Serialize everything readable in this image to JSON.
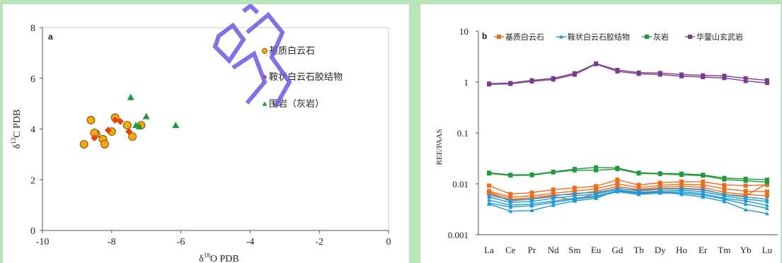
{
  "chart_data": [
    {
      "type": "scatter",
      "panel": "a",
      "xlabel": "δ18O PDB",
      "ylabel": "δ13C PDB",
      "xlim": [
        -10,
        0
      ],
      "ylim": [
        0,
        8
      ],
      "xticks": [
        "-10",
        "-8",
        "-6",
        "-4",
        "-2",
        "0"
      ],
      "yticks": [
        "0",
        "2",
        "4",
        "6",
        "8"
      ],
      "legend_position": "top-right",
      "series": [
        {
          "name": "基质白云石",
          "color": "#f5a80a",
          "marker": "circle",
          "points": [
            [
              -8.6,
              4.35
            ],
            [
              -8.45,
              3.8
            ],
            [
              -8.8,
              3.4
            ],
            [
              -8.25,
              3.6
            ],
            [
              -8.2,
              3.4
            ],
            [
              -8.5,
              3.85
            ],
            [
              -7.9,
              4.45
            ],
            [
              -8.0,
              3.9
            ],
            [
              -7.55,
              4.15
            ],
            [
              -7.4,
              3.7
            ],
            [
              -7.15,
              4.15
            ]
          ]
        },
        {
          "name": "鞍状白云石胶结物",
          "color": "#e8420e",
          "marker": "diamond",
          "points": [
            [
              -8.5,
              3.65
            ],
            [
              -8.1,
              3.95
            ],
            [
              -7.9,
              4.35
            ],
            [
              -7.75,
              4.3
            ],
            [
              -7.5,
              3.9
            ]
          ]
        },
        {
          "name": "围岩（灰岩）",
          "color": "#1e9a3c",
          "marker": "triangle",
          "points": [
            [
              -7.45,
              5.25
            ],
            [
              -7.3,
              4.15
            ],
            [
              -7.2,
              4.1
            ],
            [
              -7.0,
              4.5
            ],
            [
              -6.15,
              4.15
            ]
          ]
        }
      ]
    },
    {
      "type": "line",
      "panel": "b",
      "ylabel": "REE/PAAS",
      "yscale": "log",
      "ylim": [
        0.001,
        10
      ],
      "yticks": [
        "0.001",
        "0.01",
        "0.1",
        "1",
        "10"
      ],
      "categories": [
        "La",
        "Ce",
        "Pr",
        "Nd",
        "Sm",
        "Eu",
        "Gd",
        "Tb",
        "Dy",
        "Ho",
        "Er",
        "Tm",
        "Yb",
        "Lu"
      ],
      "legend_position": "top",
      "legend": [
        {
          "name": "基质白云石",
          "color": "#ef6c1c",
          "marker": "square"
        },
        {
          "name": "鞍状白云石胶结物",
          "color": "#1f9ad6",
          "marker": "triangle"
        },
        {
          "name": "灰岩",
          "color": "#1e9a3c",
          "marker": "square"
        },
        {
          "name": "华蓥山玄武岩",
          "color": "#7b3a8c",
          "marker": "square"
        }
      ],
      "groups": [
        {
          "color": "#ef6c1c",
          "marker": "square",
          "lines": [
            [
              0.0092,
              0.0063,
              0.0067,
              0.0077,
              0.0083,
              0.009,
              0.012,
              0.0095,
              0.0105,
              0.011,
              0.011,
              0.0095,
              0.0092,
              0.0095
            ],
            [
              0.0072,
              0.0055,
              0.0058,
              0.0065,
              0.0072,
              0.008,
              0.01,
              0.0085,
              0.0093,
              0.0098,
              0.0095,
              0.008,
              0.0072,
              0.007
            ],
            [
              0.0068,
              0.005,
              0.0053,
              0.006,
              0.0062,
              0.0072,
              0.0088,
              0.0078,
              0.0085,
              0.009,
              0.0085,
              0.0068,
              0.0062,
              0.0058
            ],
            [
              0.0065,
              0.0046,
              0.005,
              0.0056,
              0.0048,
              0.0065,
              0.0082,
              0.0072,
              0.0078,
              0.008,
              0.0076,
              0.0062,
              0.0058,
              0.0102
            ]
          ]
        },
        {
          "color": "#1f9ad6",
          "marker": "triangle",
          "lines": [
            [
              0.006,
              0.0048,
              0.005,
              0.0058,
              0.0065,
              0.0068,
              0.008,
              0.0075,
              0.008,
              0.0082,
              0.0078,
              0.0062,
              0.0055,
              0.005
            ],
            [
              0.0055,
              0.0043,
              0.0045,
              0.0052,
              0.0058,
              0.0063,
              0.0076,
              0.0068,
              0.0072,
              0.0075,
              0.007,
              0.0058,
              0.005,
              0.0045
            ],
            [
              0.0048,
              0.0038,
              0.004,
              0.0046,
              0.0052,
              0.0058,
              0.0072,
              0.0064,
              0.0068,
              0.007,
              0.0064,
              0.0052,
              0.0046,
              0.0038
            ],
            [
              0.0042,
              0.0035,
              0.0037,
              0.0043,
              0.005,
              0.0055,
              0.007,
              0.0062,
              0.0066,
              0.0066,
              0.006,
              0.005,
              0.004,
              0.0033
            ],
            [
              0.004,
              0.0029,
              0.003,
              0.0038,
              0.0046,
              0.0052,
              0.0074,
              0.0066,
              0.007,
              0.0062,
              0.0055,
              0.0045,
              0.0031,
              0.0026
            ]
          ]
        },
        {
          "color": "#1e9a3c",
          "marker": "square",
          "lines": [
            [
              0.0165,
              0.015,
              0.0152,
              0.0172,
              0.0195,
              0.021,
              0.0205,
              0.0165,
              0.016,
              0.0158,
              0.015,
              0.013,
              0.0125,
              0.012
            ],
            [
              0.016,
              0.0146,
              0.0148,
              0.0168,
              0.0185,
              0.0185,
              0.0195,
              0.016,
              0.0156,
              0.015,
              0.0145,
              0.0122,
              0.0115,
              0.0108
            ]
          ]
        },
        {
          "color": "#7b3a8c",
          "marker": "square",
          "lines": [
            [
              0.93,
              0.95,
              1.08,
              1.18,
              1.48,
              2.3,
              1.72,
              1.53,
              1.5,
              1.4,
              1.35,
              1.32,
              1.18,
              1.08
            ],
            [
              0.9,
              0.92,
              1.03,
              1.12,
              1.4,
              2.25,
              1.62,
              1.45,
              1.4,
              1.3,
              1.25,
              1.2,
              1.05,
              0.96
            ]
          ]
        }
      ]
    }
  ]
}
